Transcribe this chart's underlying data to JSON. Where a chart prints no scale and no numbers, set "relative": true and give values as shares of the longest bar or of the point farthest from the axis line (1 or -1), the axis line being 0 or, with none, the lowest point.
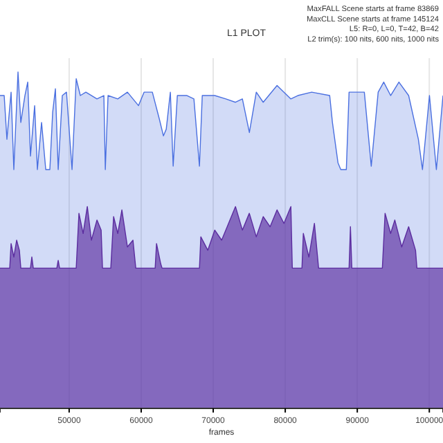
{
  "chart_data": {
    "type": "area",
    "title": "L1 PLOT",
    "xlabel": "frames",
    "relative": true,
    "grid": "x",
    "annotations": [
      "MaxFALL Scene starts at frame 83869",
      "MaxCLL Scene starts at frame 145124",
      "L5: R=0, L=0, T=42, B=42",
      "L2 trim(s): 100 nits, 600 nits, 1000 nits"
    ],
    "xlim": [
      40400,
      101900
    ],
    "xticks": [
      50000,
      60000,
      70000,
      80000,
      90000,
      100000
    ],
    "series": [
      {
        "color": "#4a6fe0",
        "x": [
          40400,
          40980,
          41360,
          41940,
          42320,
          42900,
          43290,
          43860,
          44250,
          44630,
          45210,
          45590,
          46170,
          46750,
          47320,
          47710,
          48090,
          48480,
          49050,
          49630,
          50400,
          50980,
          51550,
          52320,
          53860,
          54820,
          55020,
          55400,
          56750,
          58090,
          59630,
          60400,
          61550,
          62520,
          63090,
          63480,
          64050,
          64440,
          65020,
          66360,
          67320,
          68090,
          68480,
          70210,
          71750,
          73090,
          74050,
          75020,
          75980,
          76940,
          78860,
          79820,
          80780,
          81750,
          83670,
          86170,
          86550,
          87320,
          87710,
          88480,
          88860,
          90020,
          90980,
          91940,
          92900,
          93670,
          94630,
          95780,
          97130,
          98480,
          99050,
          100020,
          100980,
          101900
        ],
        "values": [
          0.93,
          0.93,
          0.8,
          0.94,
          0.71,
          1,
          0.85,
          0.93,
          0.97,
          0.75,
          0.9,
          0.71,
          0.85,
          0.71,
          0.71,
          0.88,
          0.95,
          0.71,
          0.93,
          0.94,
          0.71,
          0.98,
          0.93,
          0.94,
          0.92,
          0.93,
          0.71,
          0.93,
          0.92,
          0.94,
          0.9,
          0.94,
          0.94,
          0.86,
          0.81,
          0.83,
          0.94,
          0.72,
          0.93,
          0.93,
          0.92,
          0.72,
          0.93,
          0.93,
          0.92,
          0.91,
          0.92,
          0.82,
          0.94,
          0.91,
          0.96,
          0.94,
          0.92,
          0.93,
          0.94,
          0.93,
          0.85,
          0.73,
          0.71,
          0.71,
          0.94,
          0.94,
          0.94,
          0.72,
          0.94,
          0.97,
          0.93,
          0.97,
          0.93,
          0.8,
          0.71,
          0.93,
          0.71,
          0.93
        ]
      },
      {
        "color": "#5b2c9f",
        "x": [
          40400,
          41750,
          41940,
          42320,
          42710,
          43090,
          43290,
          44630,
          44820,
          45020,
          48290,
          48480,
          48670,
          50980,
          51360,
          51940,
          52520,
          53090,
          53860,
          54440,
          54630,
          55780,
          56170,
          56750,
          57320,
          58090,
          58860,
          59250,
          61940,
          62130,
          62710,
          62900,
          68090,
          68280,
          69250,
          70210,
          71170,
          72130,
          73090,
          74050,
          75010,
          75980,
          76940,
          77900,
          78860,
          79820,
          80780,
          80980,
          82320,
          82510,
          83280,
          84050,
          84630,
          88860,
          89050,
          89240,
          93480,
          93860,
          94630,
          95210,
          96170,
          97130,
          98090,
          98280,
          101900
        ],
        "values": [
          0.417,
          0.417,
          0.49,
          0.45,
          0.5,
          0.47,
          0.417,
          0.417,
          0.45,
          0.417,
          0.417,
          0.44,
          0.417,
          0.417,
          0.58,
          0.52,
          0.6,
          0.5,
          0.56,
          0.53,
          0.417,
          0.417,
          0.57,
          0.52,
          0.59,
          0.48,
          0.5,
          0.417,
          0.417,
          0.49,
          0.43,
          0.417,
          0.417,
          0.51,
          0.47,
          0.53,
          0.5,
          0.55,
          0.6,
          0.53,
          0.58,
          0.51,
          0.57,
          0.54,
          0.59,
          0.55,
          0.6,
          0.417,
          0.417,
          0.52,
          0.45,
          0.55,
          0.417,
          0.417,
          0.54,
          0.417,
          0.417,
          0.58,
          0.52,
          0.56,
          0.48,
          0.54,
          0.47,
          0.417,
          0.417
        ]
      }
    ]
  }
}
